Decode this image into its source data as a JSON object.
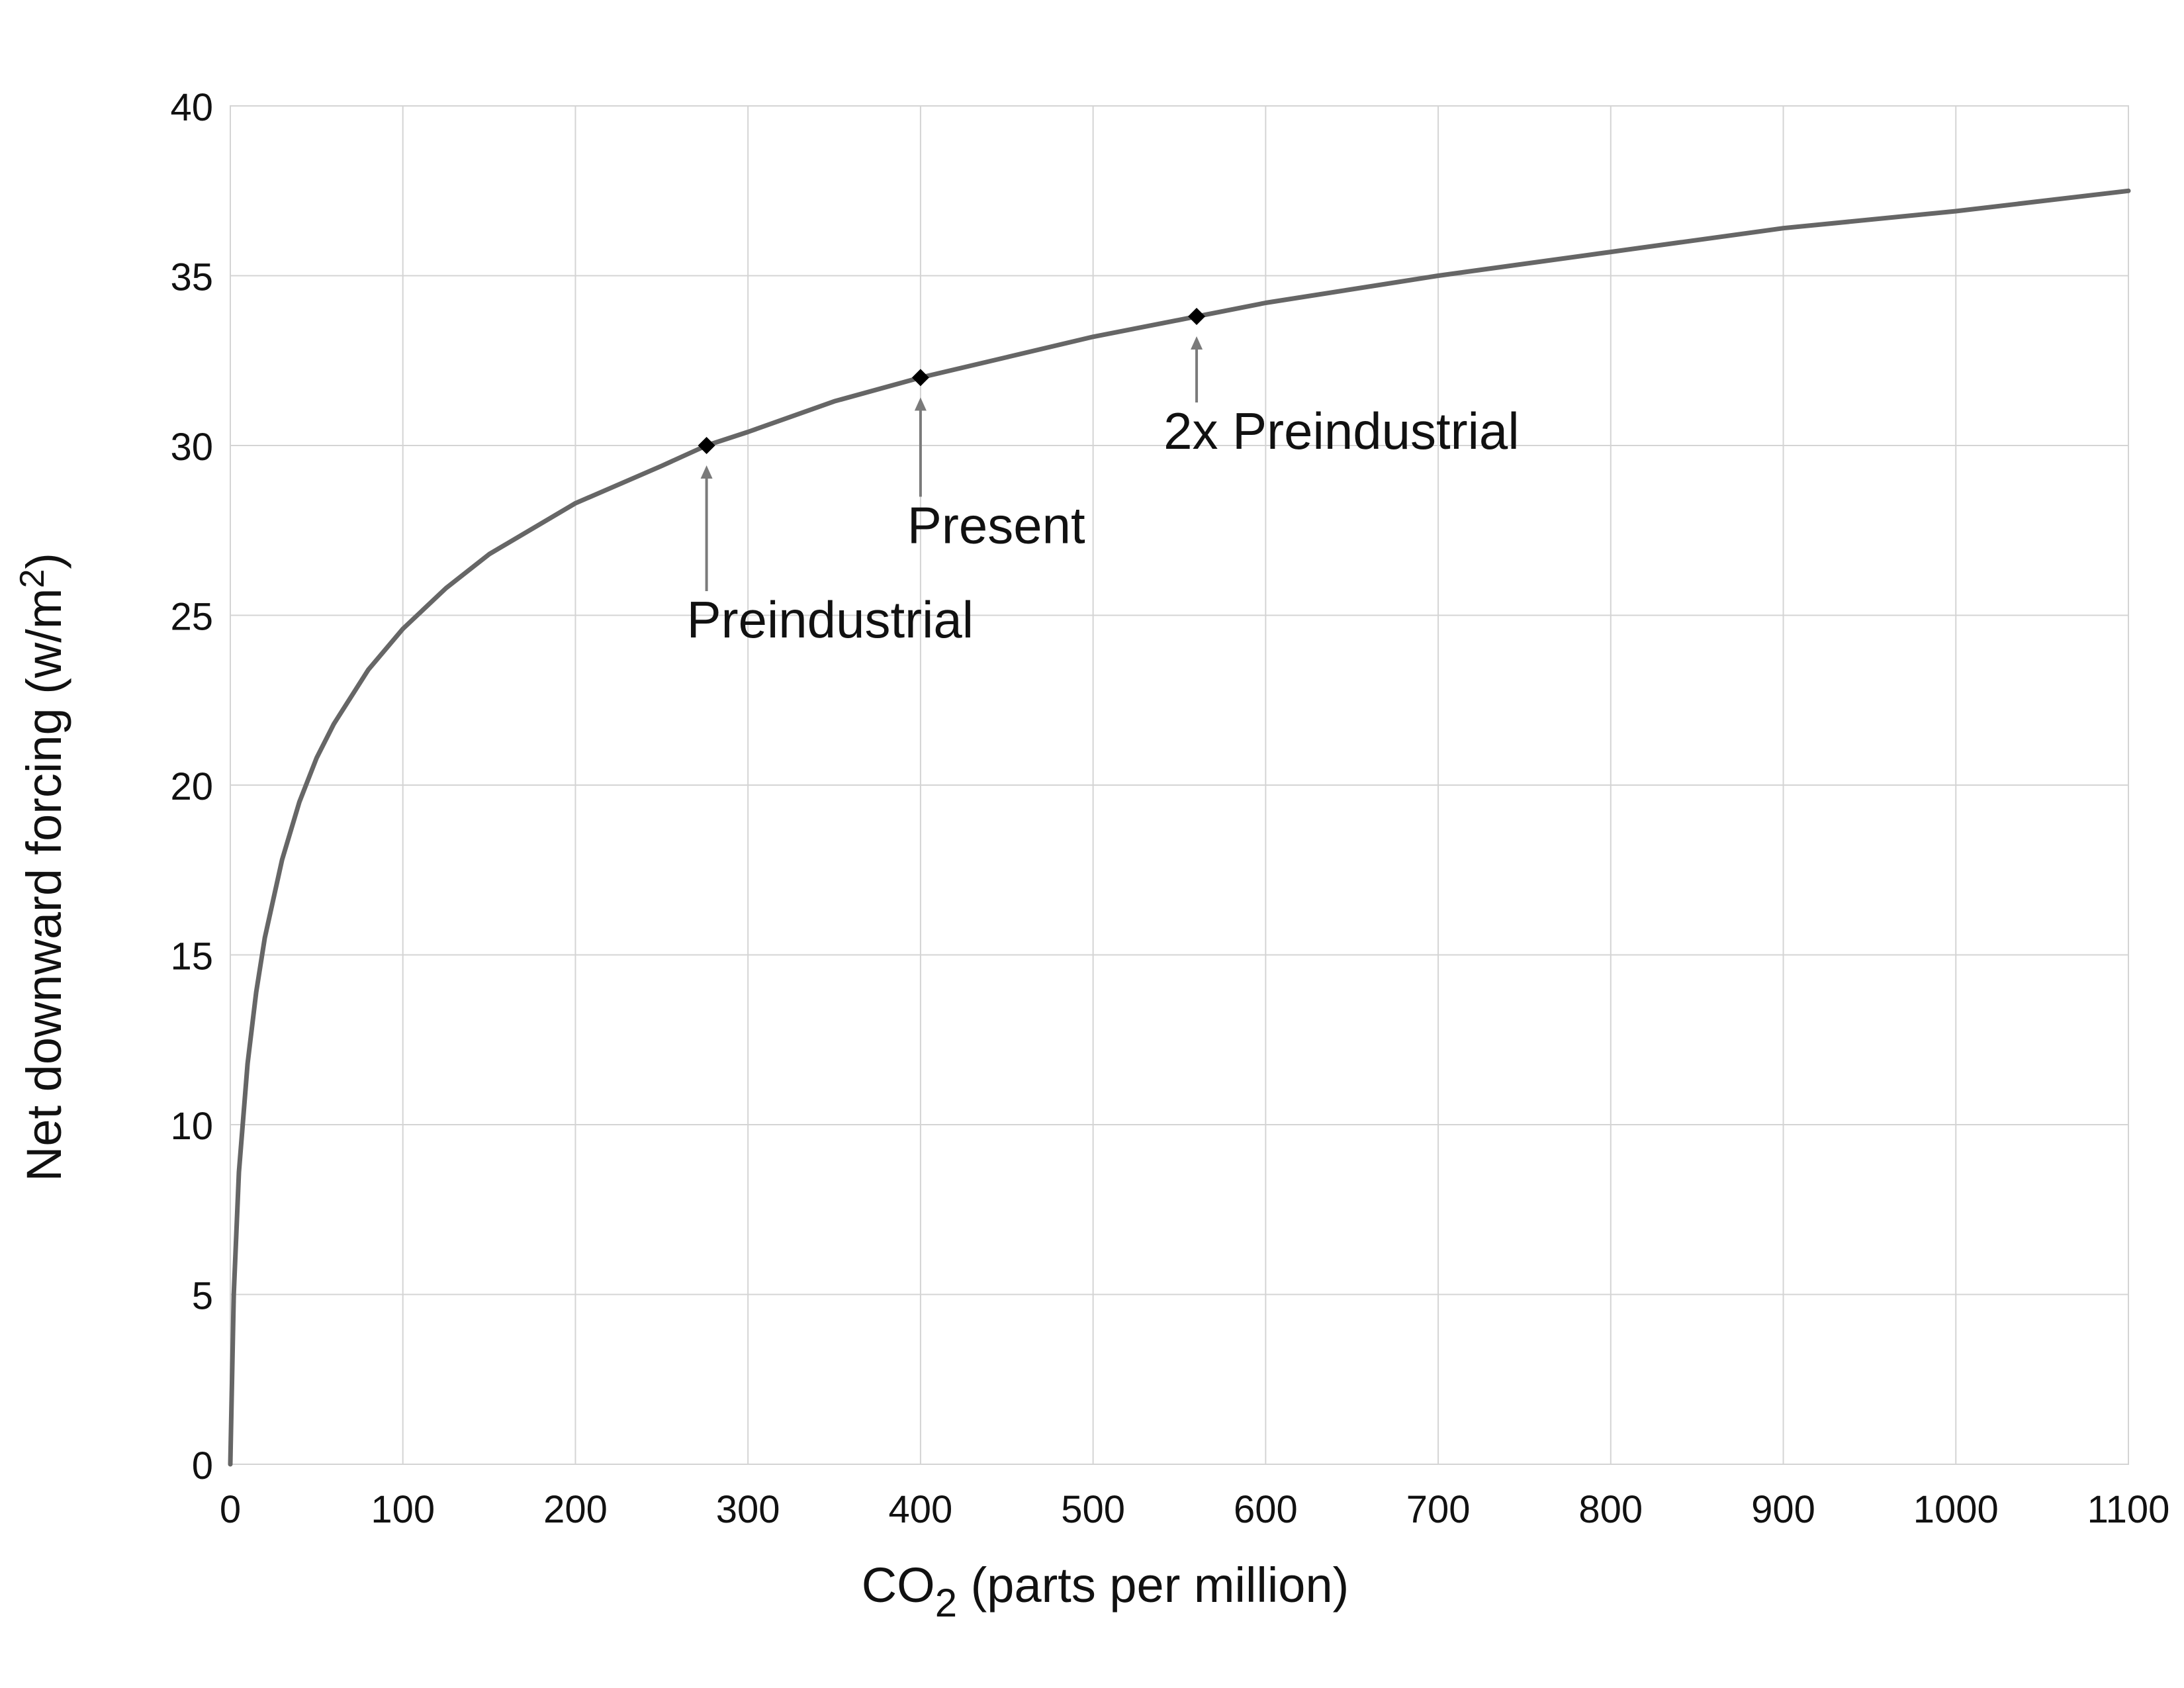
{
  "chart_data": {
    "type": "line",
    "xlabel_main": "CO",
    "xlabel_sub": "2",
    "xlabel_rest": " (parts per million)",
    "ylabel_main": "Net downward forcing (w/m",
    "ylabel_sup": "2",
    "ylabel_rest": ")",
    "xlim": [
      0,
      1100
    ],
    "ylim": [
      0,
      40
    ],
    "xticks": [
      "0",
      "100",
      "200",
      "300",
      "400",
      "500",
      "600",
      "700",
      "800",
      "900",
      "1000",
      "1100"
    ],
    "yticks": [
      "0",
      "5",
      "10",
      "15",
      "20",
      "25",
      "30",
      "35",
      "40"
    ],
    "grid": true,
    "series": [
      {
        "color": "#666666",
        "x": [
          0,
          2,
          5,
          10,
          15,
          20,
          30,
          40,
          50,
          60,
          80,
          100,
          125,
          150,
          200,
          250,
          276,
          300,
          350,
          400,
          450,
          500,
          560,
          600,
          700,
          800,
          900,
          1000,
          1100
        ],
        "y": [
          0,
          5.0,
          8.6,
          11.8,
          13.9,
          15.5,
          17.8,
          19.5,
          20.8,
          21.8,
          23.4,
          24.6,
          25.8,
          26.8,
          28.3,
          29.4,
          30.0,
          30.4,
          31.3,
          32.0,
          32.6,
          33.2,
          33.8,
          34.2,
          35.0,
          35.7,
          36.4,
          36.9,
          37.5
        ]
      }
    ],
    "annotations": [
      {
        "label": "Preindustrial",
        "x": 276,
        "y": 30.0
      },
      {
        "label": "Present",
        "x": 400,
        "y": 32.0
      },
      {
        "label": "2x Preindustrial",
        "x": 560,
        "y": 33.8
      }
    ]
  }
}
